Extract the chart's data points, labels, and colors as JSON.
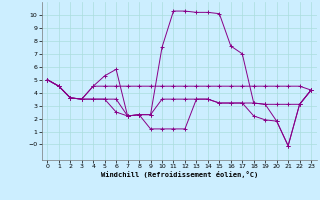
{
  "xlabel": "Windchill (Refroidissement éolien,°C)",
  "bg_color": "#cceeff",
  "grid_color": "#aadddd",
  "line_color": "#880088",
  "xlim": [
    -0.5,
    23.5
  ],
  "ylim": [
    -1.2,
    11.0
  ],
  "yticks": [
    0,
    1,
    2,
    3,
    4,
    5,
    6,
    7,
    8,
    9,
    10
  ],
  "xticks": [
    0,
    1,
    2,
    3,
    4,
    5,
    6,
    7,
    8,
    9,
    10,
    11,
    12,
    13,
    14,
    15,
    16,
    17,
    18,
    19,
    20,
    21,
    22,
    23
  ],
  "series": [
    {
      "x": [
        0,
        1,
        2,
        3,
        4,
        5,
        6,
        7,
        8,
        9,
        10,
        11,
        12,
        13,
        14,
        15,
        16,
        17,
        18,
        19,
        20,
        21,
        22,
        23
      ],
      "y": [
        5.0,
        4.5,
        3.6,
        3.5,
        4.5,
        5.3,
        5.8,
        2.2,
        2.3,
        2.3,
        7.5,
        10.3,
        10.3,
        10.2,
        10.2,
        10.1,
        7.6,
        7.0,
        3.2,
        3.1,
        1.8,
        -0.1,
        3.1,
        4.2
      ]
    },
    {
      "x": [
        0,
        1,
        2,
        3,
        4,
        5,
        6,
        7,
        8,
        9,
        10,
        11,
        12,
        13,
        14,
        15,
        16,
        17,
        18,
        19,
        20,
        21,
        22,
        23
      ],
      "y": [
        5.0,
        4.5,
        3.6,
        3.5,
        4.5,
        4.5,
        4.5,
        4.5,
        4.5,
        4.5,
        4.5,
        4.5,
        4.5,
        4.5,
        4.5,
        4.5,
        4.5,
        4.5,
        4.5,
        4.5,
        4.5,
        4.5,
        4.5,
        4.2
      ]
    },
    {
      "x": [
        0,
        1,
        2,
        3,
        4,
        5,
        6,
        7,
        8,
        9,
        10,
        11,
        12,
        13,
        14,
        15,
        16,
        17,
        18,
        19,
        20,
        21,
        22,
        23
      ],
      "y": [
        5.0,
        4.5,
        3.6,
        3.5,
        3.5,
        3.5,
        3.5,
        2.2,
        2.3,
        2.3,
        3.5,
        3.5,
        3.5,
        3.5,
        3.5,
        3.2,
        3.2,
        3.2,
        3.2,
        3.1,
        3.1,
        3.1,
        3.1,
        4.2
      ]
    },
    {
      "x": [
        0,
        1,
        2,
        3,
        4,
        5,
        6,
        7,
        8,
        9,
        10,
        11,
        12,
        13,
        14,
        15,
        16,
        17,
        18,
        19,
        20,
        21,
        22,
        23
      ],
      "y": [
        5.0,
        4.5,
        3.6,
        3.5,
        3.5,
        3.5,
        2.5,
        2.2,
        2.3,
        1.2,
        1.2,
        1.2,
        1.2,
        3.5,
        3.5,
        3.2,
        3.2,
        3.2,
        2.2,
        1.9,
        1.8,
        -0.1,
        3.1,
        4.2
      ]
    }
  ]
}
